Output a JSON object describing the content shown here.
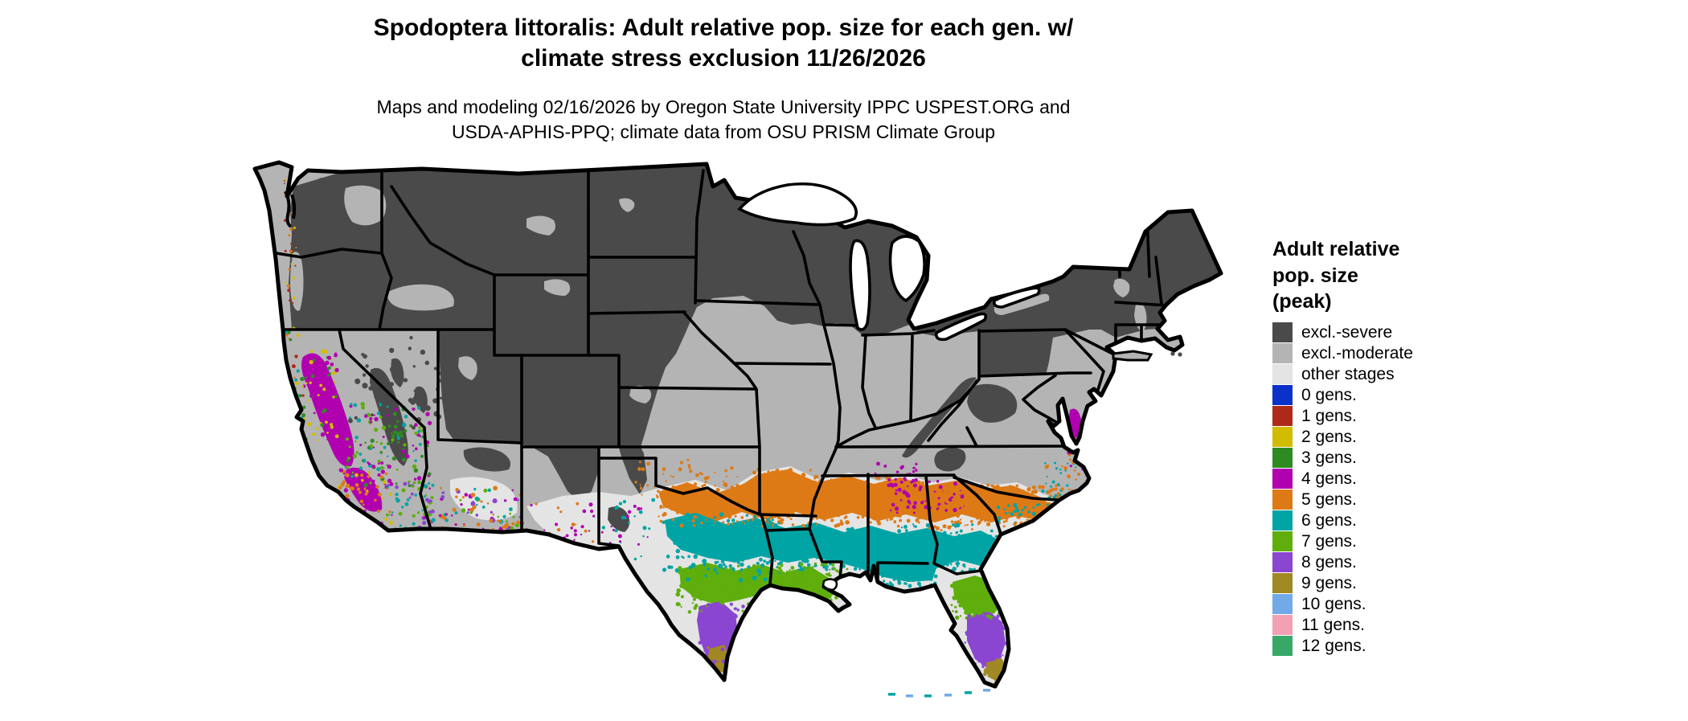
{
  "title": {
    "line1": "Spodoptera littoralis: Adult relative pop. size for each gen. w/",
    "line2": "climate stress exclusion 11/26/2026"
  },
  "subtitle": {
    "line1": "Maps and modeling 02/16/2026 by Oregon State University IPPC USPEST.ORG and",
    "line2": "USDA-APHIS-PPQ; climate data from OSU PRISM Climate Group"
  },
  "legend": {
    "title_lines": [
      "Adult relative",
      "pop. size",
      "(peak)"
    ],
    "items": [
      {
        "key": "sev",
        "label": "excl.-severe",
        "color": "#4a4a4a"
      },
      {
        "key": "mod",
        "label": "excl.-moderate",
        "color": "#b4b4b4"
      },
      {
        "key": "oth",
        "label": "other stages",
        "color": "#e4e4e4"
      },
      {
        "key": "g0",
        "label": "0 gens.",
        "color": "#0b32c8"
      },
      {
        "key": "g1",
        "label": "1 gens.",
        "color": "#ae2a18"
      },
      {
        "key": "g2",
        "label": "2 gens.",
        "color": "#d2bc00"
      },
      {
        "key": "g3",
        "label": "3 gens.",
        "color": "#2e8b22"
      },
      {
        "key": "g4",
        "label": "4 gens.",
        "color": "#b000b0"
      },
      {
        "key": "g5",
        "label": "5 gens.",
        "color": "#dd7a16"
      },
      {
        "key": "g6",
        "label": "6 gens.",
        "color": "#00a4a4"
      },
      {
        "key": "g7",
        "label": "7 gens.",
        "color": "#5fae0c"
      },
      {
        "key": "g8",
        "label": "8 gens.",
        "color": "#8a46d0"
      },
      {
        "key": "g9",
        "label": "9 gens.",
        "color": "#a08822"
      },
      {
        "key": "g10",
        "label": "10 gens.",
        "color": "#72aae8"
      },
      {
        "key": "g11",
        "label": "11 gens.",
        "color": "#f2a0b4"
      },
      {
        "key": "g12",
        "label": "12 gens.",
        "color": "#38a868"
      }
    ]
  },
  "map": {
    "region": "Conterminous United States",
    "water_color": "#ffffff",
    "border_color": "#000000"
  }
}
